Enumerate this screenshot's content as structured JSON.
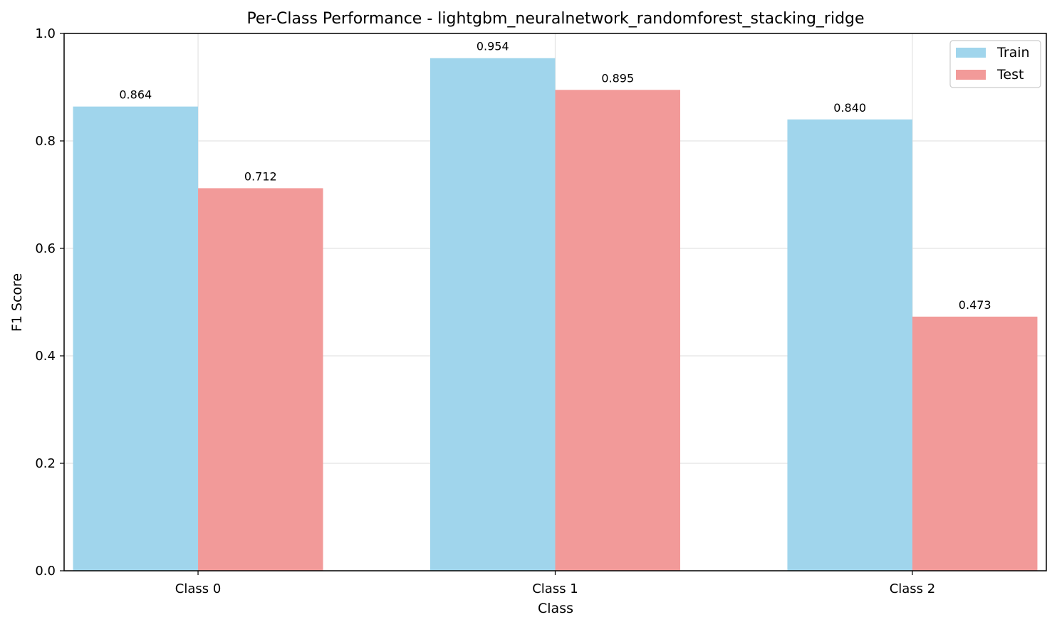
{
  "chart_data": {
    "type": "bar",
    "title": "Per-Class Performance - lightgbm_neuralnetwork_randomforest_stacking_ridge",
    "xlabel": "Class",
    "ylabel": "F1 Score",
    "categories": [
      "Class 0",
      "Class 1",
      "Class 2"
    ],
    "series": [
      {
        "name": "Train",
        "values": [
          0.864,
          0.954,
          0.84
        ],
        "labels": [
          "0.864",
          "0.954",
          "0.840"
        ],
        "color": "#a0d5ec"
      },
      {
        "name": "Test",
        "values": [
          0.712,
          0.895,
          0.473
        ],
        "labels": [
          "0.712",
          "0.895",
          "0.473"
        ],
        "color": "#f29a99"
      }
    ],
    "ylim": [
      0,
      1.0
    ],
    "yticks": [
      0.0,
      0.2,
      0.4,
      0.6,
      0.8,
      1.0
    ],
    "ytick_labels": [
      "0.0",
      "0.2",
      "0.4",
      "0.6",
      "0.8",
      "1.0"
    ],
    "grid": true,
    "legend_position": "top-right"
  }
}
